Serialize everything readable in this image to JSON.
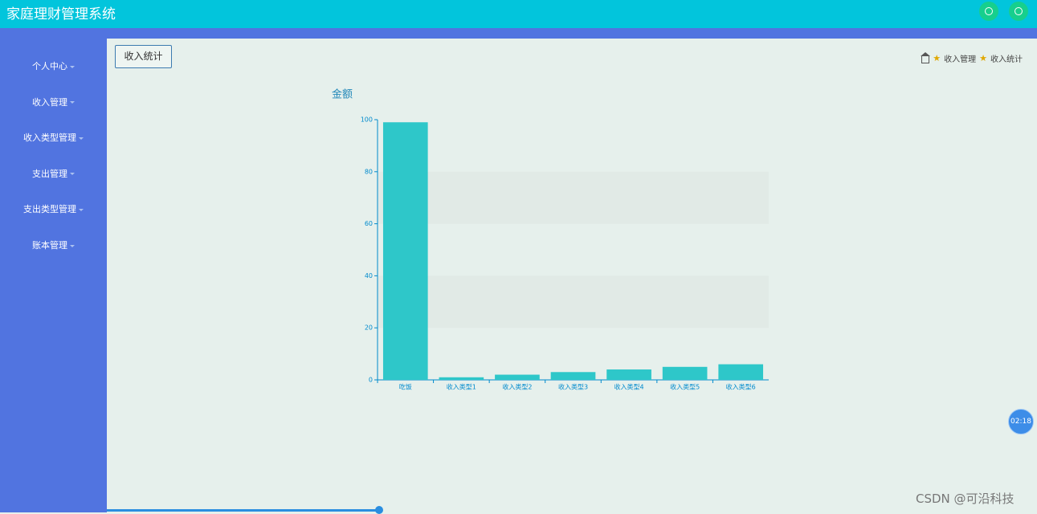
{
  "header": {
    "title": "家庭理财管理系统"
  },
  "sidebar": {
    "items": [
      "个人中心",
      "收入管理",
      "收入类型管理",
      "支出管理",
      "支出类型管理",
      "账本管理"
    ]
  },
  "tab": "收入统计",
  "breadcrumb": [
    "收入管理",
    "收入统计"
  ],
  "clock": "02:18",
  "watermark": "CSDN @可沿科技",
  "chart_data": {
    "type": "bar",
    "title": "金额",
    "categories": [
      "吃饭",
      "收入类型1",
      "收入类型2",
      "收入类型3",
      "收入类型4",
      "收入类型5",
      "收入类型6"
    ],
    "values": [
      99,
      1,
      2,
      3,
      4,
      5,
      6
    ],
    "color": "#2ec7c9",
    "ylim": [
      0,
      100
    ],
    "yticks": [
      0,
      20,
      40,
      60,
      80,
      100
    ],
    "split_area": true
  }
}
